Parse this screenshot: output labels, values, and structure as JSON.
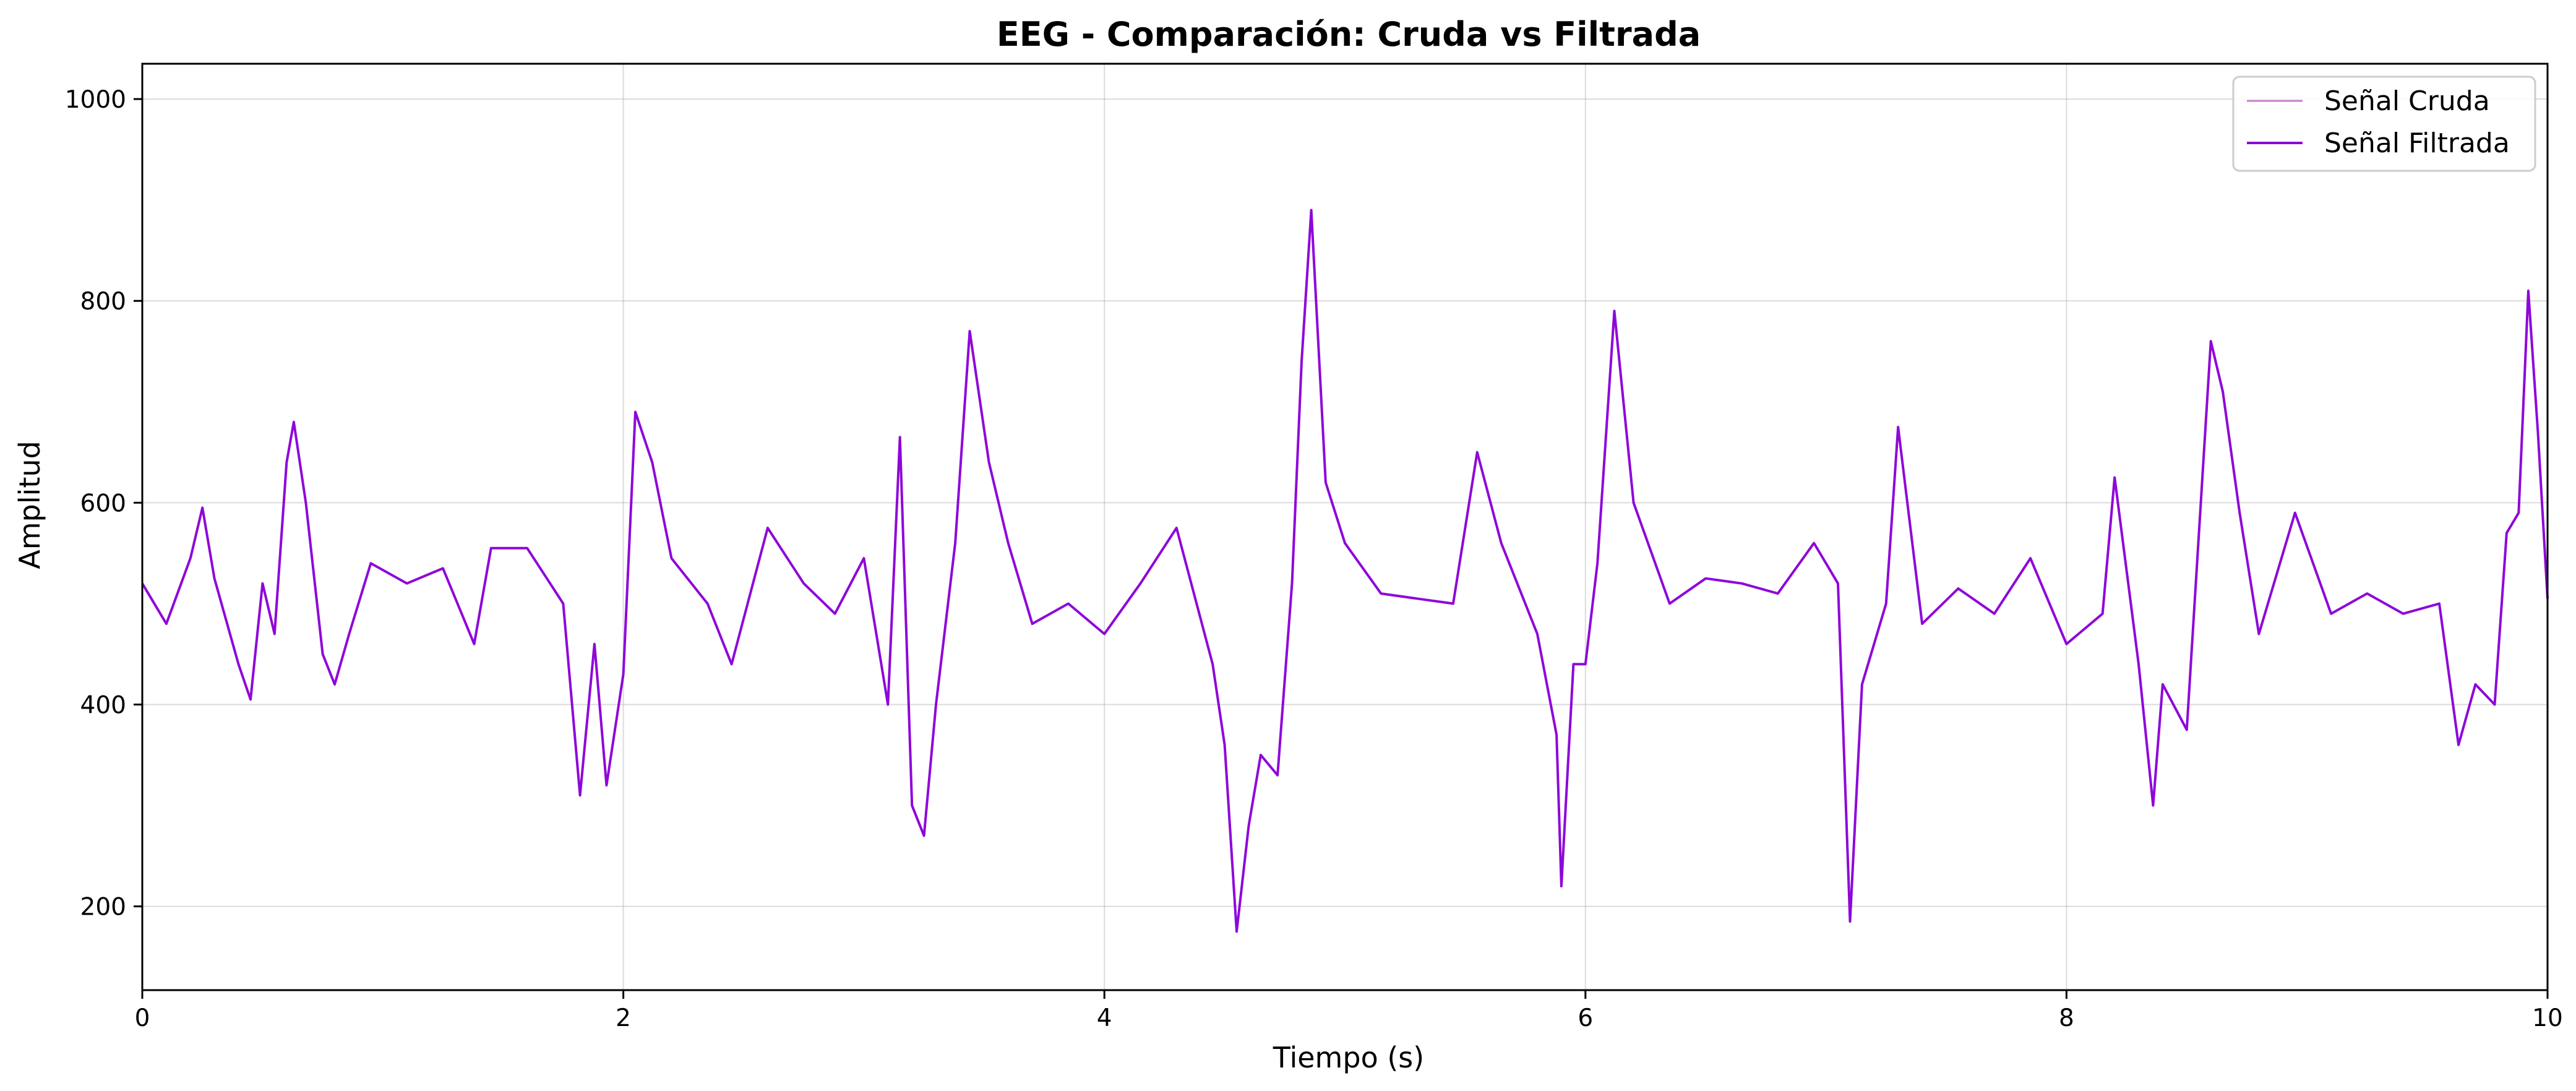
{
  "chart_data": {
    "type": "line",
    "title": "EEG - Comparación: Cruda vs Filtrada",
    "xlabel": "Tiempo (s)",
    "ylabel": "Amplitud",
    "xlim": [
      0,
      10
    ],
    "ylim": [
      117,
      1035
    ],
    "x_ticks": [
      0,
      2,
      4,
      6,
      8,
      10
    ],
    "x_tick_labels": [
      "0",
      "2",
      "4",
      "6",
      "8",
      "10"
    ],
    "y_ticks": [
      200,
      400,
      600,
      800,
      1000
    ],
    "y_tick_labels": [
      "200",
      "400",
      "600",
      "800",
      "1000"
    ],
    "grid": true,
    "legend_position": "top-right",
    "series": [
      {
        "name": "Señal Cruda",
        "color": "#c77dca",
        "x": [
          0,
          0.1,
          0.2,
          0.25,
          0.3,
          0.4,
          0.45,
          0.5,
          0.55,
          0.6,
          0.63,
          0.68,
          0.75,
          0.8,
          0.86,
          0.95,
          1.1,
          1.25,
          1.38,
          1.45,
          1.6,
          1.75,
          1.82,
          1.88,
          1.93,
          2.0,
          2.05,
          2.12,
          2.2,
          2.35,
          2.45,
          2.6,
          2.75,
          2.88,
          3.0,
          3.1,
          3.15,
          3.2,
          3.25,
          3.3,
          3.38,
          3.44,
          3.52,
          3.6,
          3.7,
          3.85,
          4.0,
          4.15,
          4.3,
          4.45,
          4.5,
          4.55,
          4.6,
          4.65,
          4.72,
          4.78,
          4.82,
          4.86,
          4.92,
          5.0,
          5.15,
          5.3,
          5.45,
          5.55,
          5.65,
          5.8,
          5.88,
          5.9,
          5.95,
          6.0,
          6.05,
          6.12,
          6.2,
          6.35,
          6.5,
          6.65,
          6.8,
          6.95,
          7.05,
          7.1,
          7.15,
          7.25,
          7.3,
          7.4,
          7.55,
          7.7,
          7.85,
          8.0,
          8.15,
          8.2,
          8.3,
          8.36,
          8.4,
          8.5,
          8.6,
          8.65,
          8.72,
          8.8,
          8.95,
          9.1,
          9.25,
          9.4,
          9.55,
          9.63,
          9.7,
          9.78,
          9.83,
          9.88,
          9.92,
          9.96,
          10.0
        ],
        "values": [
          520,
          480,
          545,
          595,
          525,
          440,
          405,
          520,
          470,
          640,
          680,
          600,
          450,
          420,
          470,
          540,
          520,
          535,
          460,
          555,
          555,
          500,
          310,
          460,
          320,
          430,
          690,
          640,
          545,
          500,
          440,
          575,
          520,
          490,
          545,
          400,
          665,
          300,
          270,
          400,
          560,
          770,
          640,
          560,
          480,
          500,
          470,
          520,
          575,
          440,
          360,
          175,
          280,
          350,
          330,
          520,
          740,
          890,
          620,
          560,
          510,
          505,
          500,
          650,
          560,
          470,
          370,
          220,
          440,
          440,
          540,
          790,
          600,
          500,
          525,
          520,
          510,
          560,
          520,
          185,
          420,
          500,
          675,
          480,
          515,
          490,
          545,
          460,
          490,
          625,
          440,
          300,
          420,
          375,
          760,
          710,
          590,
          470,
          590,
          490,
          510,
          490,
          500,
          360,
          420,
          400,
          570,
          590,
          810,
          670,
          505
        ]
      },
      {
        "name": "Señal Filtrada",
        "color": "#8e07d9",
        "x": [
          0,
          0.1,
          0.2,
          0.25,
          0.3,
          0.4,
          0.45,
          0.5,
          0.55,
          0.6,
          0.63,
          0.68,
          0.75,
          0.8,
          0.86,
          0.95,
          1.1,
          1.25,
          1.38,
          1.45,
          1.6,
          1.75,
          1.82,
          1.88,
          1.93,
          2.0,
          2.05,
          2.12,
          2.2,
          2.35,
          2.45,
          2.6,
          2.75,
          2.88,
          3.0,
          3.1,
          3.15,
          3.2,
          3.25,
          3.3,
          3.38,
          3.44,
          3.52,
          3.6,
          3.7,
          3.85,
          4.0,
          4.15,
          4.3,
          4.45,
          4.5,
          4.55,
          4.6,
          4.65,
          4.72,
          4.78,
          4.82,
          4.86,
          4.92,
          5.0,
          5.15,
          5.3,
          5.45,
          5.55,
          5.65,
          5.8,
          5.88,
          5.9,
          5.95,
          6.0,
          6.05,
          6.12,
          6.2,
          6.35,
          6.5,
          6.65,
          6.8,
          6.95,
          7.05,
          7.1,
          7.15,
          7.25,
          7.3,
          7.4,
          7.55,
          7.7,
          7.85,
          8.0,
          8.15,
          8.2,
          8.3,
          8.36,
          8.4,
          8.5,
          8.6,
          8.65,
          8.72,
          8.8,
          8.95,
          9.1,
          9.25,
          9.4,
          9.55,
          9.63,
          9.7,
          9.78,
          9.83,
          9.88,
          9.92,
          9.96,
          10.0
        ],
        "values": [
          520,
          480,
          545,
          595,
          525,
          440,
          405,
          520,
          470,
          640,
          680,
          600,
          450,
          420,
          470,
          540,
          520,
          535,
          460,
          555,
          555,
          500,
          310,
          460,
          320,
          430,
          690,
          640,
          545,
          500,
          440,
          575,
          520,
          490,
          545,
          400,
          665,
          300,
          270,
          400,
          560,
          770,
          640,
          560,
          480,
          500,
          470,
          520,
          575,
          440,
          360,
          175,
          280,
          350,
          330,
          520,
          740,
          890,
          620,
          560,
          510,
          505,
          500,
          650,
          560,
          470,
          370,
          220,
          440,
          440,
          540,
          790,
          600,
          500,
          525,
          520,
          510,
          560,
          520,
          185,
          420,
          500,
          675,
          480,
          515,
          490,
          545,
          460,
          490,
          625,
          440,
          300,
          420,
          375,
          760,
          710,
          590,
          470,
          590,
          490,
          510,
          490,
          500,
          360,
          420,
          400,
          570,
          590,
          810,
          670,
          505
        ]
      }
    ]
  }
}
